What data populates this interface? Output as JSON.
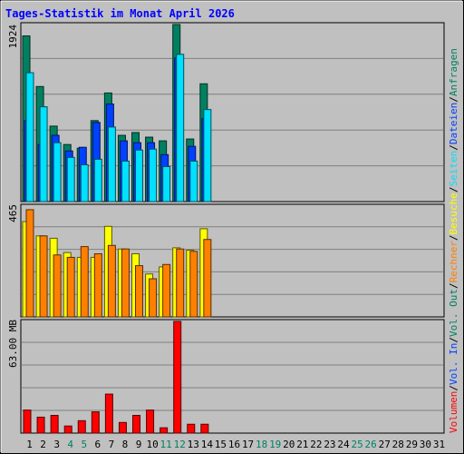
{
  "chart_data": [
    {
      "type": "bar",
      "title": "Tages-Statistik im Monat April 2026",
      "panel": "top",
      "ymax_label": "1924",
      "ylim": [
        0,
        1924
      ],
      "categories": [
        "1",
        "2",
        "3",
        "4",
        "5",
        "6",
        "7",
        "8",
        "9",
        "10",
        "11",
        "12",
        "13",
        "14",
        "15",
        "16",
        "17",
        "18",
        "19",
        "20",
        "21",
        "22",
        "23",
        "24",
        "25",
        "26",
        "27",
        "28",
        "29",
        "30",
        "31"
      ],
      "weekend_days": [
        "4",
        "5",
        "11",
        "12",
        "18",
        "19",
        "25",
        "26"
      ],
      "legend": [
        "Anfragen",
        "Dateien",
        "Seiten"
      ],
      "series": [
        {
          "name": "Anfragen",
          "color": "#008060",
          "values": [
            1800,
            1250,
            820,
            620,
            580,
            880,
            1180,
            720,
            750,
            700,
            660,
            1924,
            680,
            1280,
            0,
            0,
            0,
            0,
            0,
            0,
            0,
            0,
            0,
            0,
            0,
            0,
            0,
            0,
            0,
            0,
            0
          ]
        },
        {
          "name": "Dateien",
          "color": "#00E0FF",
          "values": [
            1400,
            1030,
            640,
            480,
            400,
            460,
            810,
            440,
            560,
            570,
            380,
            1600,
            440,
            1000,
            0,
            0,
            0,
            0,
            0,
            0,
            0,
            0,
            0,
            0,
            0,
            0,
            0,
            0,
            0,
            0,
            0
          ]
        },
        {
          "name": "Seiten",
          "color": "#0040FF",
          "values": [
            880,
            620,
            720,
            550,
            590,
            860,
            1060,
            660,
            640,
            640,
            510,
            1560,
            600,
            900,
            0,
            0,
            0,
            0,
            0,
            0,
            0,
            0,
            0,
            0,
            0,
            0,
            0,
            0,
            0,
            0,
            0
          ]
        }
      ]
    },
    {
      "type": "bar",
      "panel": "middle",
      "ymax_label": "465",
      "ylim": [
        0,
        465
      ],
      "legend": [
        "Besuche",
        "Rechner"
      ],
      "series": [
        {
          "name": "Besuche",
          "color": "#FFFF00",
          "values": [
            400,
            340,
            330,
            270,
            250,
            250,
            380,
            285,
            265,
            180,
            210,
            290,
            280,
            370,
            0,
            0,
            0,
            0,
            0,
            0,
            0,
            0,
            0,
            0,
            0,
            0,
            0,
            0,
            0,
            0,
            0
          ]
        },
        {
          "name": "Rechner",
          "color": "#FF8000",
          "values": [
            450,
            340,
            260,
            250,
            295,
            265,
            300,
            285,
            215,
            160,
            220,
            285,
            275,
            325,
            0,
            0,
            0,
            0,
            0,
            0,
            0,
            0,
            0,
            0,
            0,
            0,
            0,
            0,
            0,
            0,
            0
          ]
        }
      ]
    },
    {
      "type": "bar",
      "panel": "bottom",
      "ymax_label": "63.00 MB",
      "ylim": [
        0,
        63
      ],
      "legend": [
        "Volumen",
        "Vol. In",
        "Vol. Out"
      ],
      "series": [
        {
          "name": "Volumen",
          "color": "#FF0000",
          "values": [
            13,
            9,
            10,
            4,
            7,
            12,
            22,
            6,
            10,
            13,
            3,
            63,
            5,
            5,
            0,
            0,
            0,
            0,
            0,
            0,
            0,
            0,
            0,
            0,
            0,
            0,
            0,
            0,
            0,
            0,
            0
          ]
        }
      ]
    }
  ],
  "legend_separator": "/"
}
